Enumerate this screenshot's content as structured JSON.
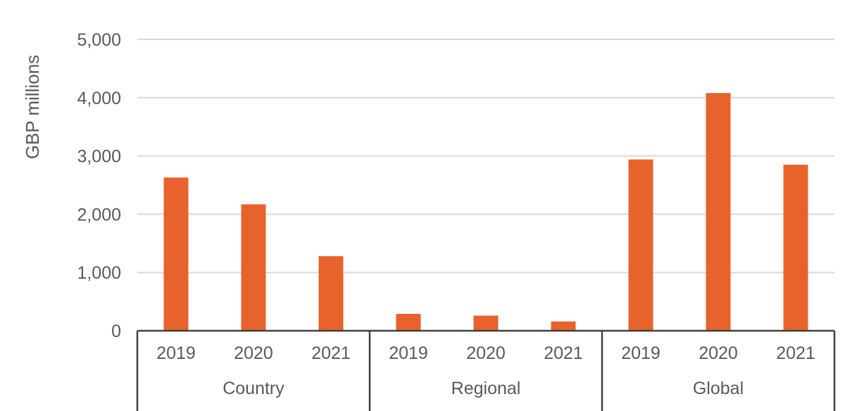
{
  "chart_data": {
    "type": "bar",
    "ylabel": "GBP millions",
    "xlabel": "",
    "ylim": [
      0,
      5000
    ],
    "yticks": [
      0,
      1000,
      2000,
      3000,
      4000,
      5000
    ],
    "ytick_labels": [
      "0",
      "1,000",
      "2,000",
      "3,000",
      "4,000",
      "5,000"
    ],
    "grid": true,
    "legend": "none",
    "bar_color": "#E8622C",
    "groups": [
      {
        "name": "Country",
        "categories": [
          "2019",
          "2020",
          "2021"
        ],
        "values": [
          2630,
          2170,
          1280
        ]
      },
      {
        "name": "Regional",
        "categories": [
          "2019",
          "2020",
          "2021"
        ],
        "values": [
          290,
          260,
          160
        ]
      },
      {
        "name": "Global",
        "categories": [
          "2019",
          "2020",
          "2021"
        ],
        "values": [
          2940,
          4080,
          2850
        ]
      }
    ]
  }
}
